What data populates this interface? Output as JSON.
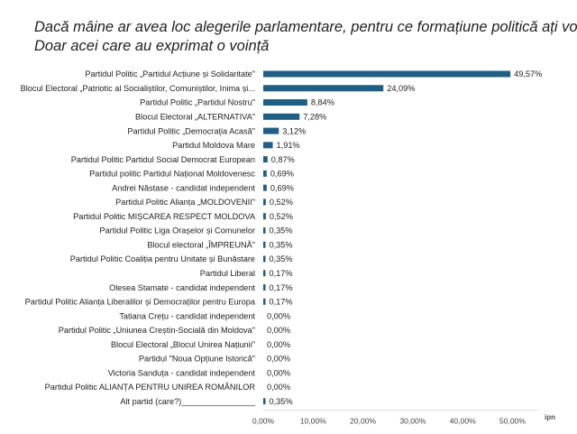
{
  "title_line1": "Dacă mâine ar avea loc alegerile parlamentare, pentru ce formațiune politică ați vota?",
  "title_line2": "Doar acei care au exprimat o voință",
  "logo": "ipn",
  "chart_data": {
    "type": "bar",
    "orientation": "horizontal",
    "title": "Dacă mâine ar avea loc alegerile parlamentare, pentru ce formațiune politică ați vota? Doar acei care au exprimat o voință",
    "categories": [
      "Partidul Politic „Partidul Acțiune și Solidaritate\"",
      "Blocul Electoral „Patriotic al Socialiștilor, Comuniștilor, Inima și...",
      "Partidul Politic „Partidul Nostru\"",
      "Blocul Electoral „ALTERNATIVA\"",
      "Partidul Politic „Democrația Acasă\"",
      "Partidul Moldova Mare",
      "Partidul Politic Partidul Social Democrat European",
      "Partidul politic Partidul Național Moldovenesc",
      "Andrei Năstase - candidat independent",
      "Partidul Politic Alianța „MOLDOVENII\"",
      "Partidul Politic MIȘCAREA RESPECT MOLDOVA",
      "Partidul Politic Liga Orașelor și Comunelor",
      "Blocul electoral „ÎMPREUNĂ\"",
      "Partidul Politic Coaliția pentru Unitate și Bunăstare",
      "Partidul Liberal",
      "Olesea Stamate - candidat independent",
      "Partidul Politic Alianța Liberalilor și Democraților pentru Europa",
      "Tatiana Crețu - candidat independent",
      "Partidul Politic „Uniunea Creștin-Socială din Moldova\"",
      "Blocul Electoral „Blocul Unirea Națiunii\"",
      "Partidul \"Noua Opțiune Istorică\"",
      "Victoria Sanduța - candidat independent",
      "Partidul Politic ALIANȚA PENTRU UNIREA ROMÂNILOR",
      "Alt partid (care?)________________"
    ],
    "values": [
      49.57,
      24.09,
      8.84,
      7.28,
      3.12,
      1.91,
      0.87,
      0.69,
      0.69,
      0.52,
      0.52,
      0.35,
      0.35,
      0.35,
      0.17,
      0.17,
      0.17,
      0.0,
      0.0,
      0.0,
      0.0,
      0.0,
      0.0,
      0.35
    ],
    "value_labels": [
      "49,57%",
      "24,09%",
      "8,84%",
      "7,28%",
      "3,12%",
      "1,91%",
      "0,87%",
      "0,69%",
      "0,69%",
      "0,52%",
      "0,52%",
      "0,35%",
      "0,35%",
      "0,35%",
      "0,17%",
      "0,17%",
      "0,17%",
      "0,00%",
      "0,00%",
      "0,00%",
      "0,00%",
      "0,00%",
      "0,00%",
      "0,35%"
    ],
    "x_ticks": [
      "0,00%",
      "10,00%",
      "20,00%",
      "30,00%",
      "40,00%",
      "50,00%"
    ],
    "xlim": [
      0,
      55
    ],
    "xlabel": "",
    "ylabel": "",
    "bar_color": "#1f5f86",
    "grid": false,
    "legend": "none"
  }
}
